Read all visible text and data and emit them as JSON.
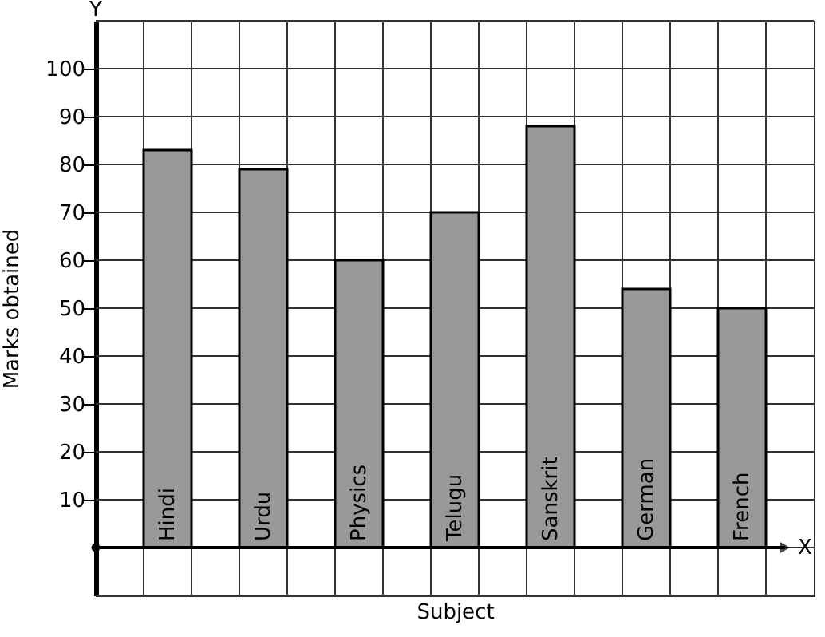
{
  "chart_data": {
    "type": "bar",
    "xlabel": "Subject",
    "ylabel": "Marks obtained",
    "categories": [
      "Hindi",
      "Urdu",
      "Physics",
      "Telugu",
      "Sanskrit",
      "German",
      "French"
    ],
    "values": [
      83,
      79,
      60,
      70,
      88,
      54,
      50
    ],
    "color": "#999999",
    "ylim": [
      -10,
      110
    ],
    "yticks": [
      10,
      20,
      30,
      40,
      50,
      60,
      70,
      80,
      90,
      100
    ],
    "grid": true,
    "annotations": [
      "X",
      "Y"
    ]
  }
}
